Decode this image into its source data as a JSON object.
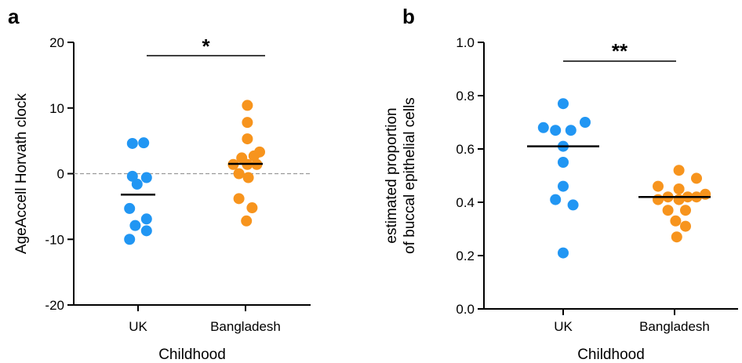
{
  "colors": {
    "uk": "#2196F3",
    "bangladesh": "#F7941D",
    "axis": "#000000",
    "reference_line": "#999999"
  },
  "chart_data": [
    {
      "type": "scatter",
      "panel_label": "a",
      "categories": [
        "UK",
        "Bangladesh"
      ],
      "xlabel": "Childhood",
      "ylabel": "AgeAccell Horvath clock",
      "ylim": [
        -20,
        20
      ],
      "yticks": [
        -20,
        -10,
        0,
        10,
        20
      ],
      "ytick_labels": [
        "-20",
        "-10",
        "0",
        "10",
        "20"
      ],
      "grid": false,
      "reference_line": 0,
      "significance": "*",
      "series": [
        {
          "category": "UK",
          "color": "#2196F3",
          "median": -3.2,
          "points": [
            {
              "x": -0.3,
              "y": 4.6
            },
            {
              "x": 0.3,
              "y": 4.7
            },
            {
              "x": -0.3,
              "y": -0.4
            },
            {
              "x": 0.45,
              "y": -0.6
            },
            {
              "x": -0.05,
              "y": -1.6
            },
            {
              "x": -0.45,
              "y": -5.3
            },
            {
              "x": 0.45,
              "y": -6.9
            },
            {
              "x": -0.15,
              "y": -7.9
            },
            {
              "x": 0.45,
              "y": -8.7
            },
            {
              "x": -0.45,
              "y": -10.0
            }
          ]
        },
        {
          "category": "Bangladesh",
          "color": "#F7941D",
          "median": 1.5,
          "points": [
            {
              "x": 0.1,
              "y": 10.4
            },
            {
              "x": 0.1,
              "y": 7.8
            },
            {
              "x": 0.1,
              "y": 5.3
            },
            {
              "x": 0.75,
              "y": 3.3
            },
            {
              "x": 0.45,
              "y": 2.7
            },
            {
              "x": -0.2,
              "y": 2.4
            },
            {
              "x": -0.65,
              "y": 1.4
            },
            {
              "x": 0.1,
              "y": 1.4
            },
            {
              "x": 0.6,
              "y": 1.4
            },
            {
              "x": -0.35,
              "y": 0.0
            },
            {
              "x": 0.15,
              "y": -0.6
            },
            {
              "x": -0.35,
              "y": -3.8
            },
            {
              "x": 0.35,
              "y": -5.2
            },
            {
              "x": 0.05,
              "y": -7.2
            }
          ]
        }
      ]
    },
    {
      "type": "scatter",
      "panel_label": "b",
      "categories": [
        "UK",
        "Bangladesh"
      ],
      "xlabel": "Childhood",
      "ylabel": [
        "estimated proportion",
        "of buccal epithelial cells"
      ],
      "ylim": [
        0.0,
        1.0
      ],
      "yticks": [
        0.0,
        0.2,
        0.4,
        0.6,
        0.8,
        1.0
      ],
      "ytick_labels": [
        "0.0",
        "0.2",
        "0.4",
        "0.6",
        "0.8",
        "1.0"
      ],
      "grid": false,
      "significance": "**",
      "series": [
        {
          "category": "UK",
          "color": "#2196F3",
          "median": 0.61,
          "points": [
            {
              "x": 0.0,
              "y": 0.77
            },
            {
              "x": 1.0,
              "y": 0.7
            },
            {
              "x": -0.9,
              "y": 0.68
            },
            {
              "x": -0.35,
              "y": 0.67
            },
            {
              "x": 0.35,
              "y": 0.67
            },
            {
              "x": 0.0,
              "y": 0.61
            },
            {
              "x": 0.0,
              "y": 0.55
            },
            {
              "x": 0.0,
              "y": 0.46
            },
            {
              "x": -0.35,
              "y": 0.41
            },
            {
              "x": 0.45,
              "y": 0.39
            },
            {
              "x": 0.0,
              "y": 0.21
            }
          ]
        },
        {
          "category": "Bangladesh",
          "color": "#F7941D",
          "median": 0.42,
          "points": [
            {
              "x": 0.2,
              "y": 0.52
            },
            {
              "x": 1.0,
              "y": 0.49
            },
            {
              "x": -0.75,
              "y": 0.46
            },
            {
              "x": 0.2,
              "y": 0.45
            },
            {
              "x": 1.4,
              "y": 0.43
            },
            {
              "x": -0.75,
              "y": 0.41
            },
            {
              "x": -0.3,
              "y": 0.42
            },
            {
              "x": 0.2,
              "y": 0.41
            },
            {
              "x": 0.6,
              "y": 0.42
            },
            {
              "x": 1.0,
              "y": 0.42
            },
            {
              "x": -0.3,
              "y": 0.37
            },
            {
              "x": 0.5,
              "y": 0.37
            },
            {
              "x": 0.05,
              "y": 0.33
            },
            {
              "x": 0.5,
              "y": 0.31
            },
            {
              "x": 0.1,
              "y": 0.27
            }
          ]
        }
      ]
    }
  ]
}
